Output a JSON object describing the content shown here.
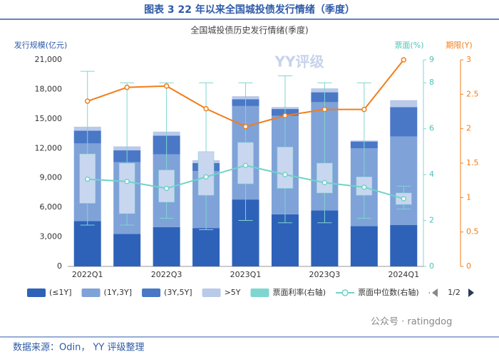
{
  "header": {
    "title": "图表 3  22 年以来全国城投债发行情绪（季度）"
  },
  "chart_data": {
    "type": "bar",
    "stacked": true,
    "subtitle": "全国城投债历史发行情绪(季度)",
    "watermark_logo": "YY评级",
    "y_label": "发行规模(亿元)",
    "y2_label": "票面(%)",
    "y3_label": "期限(Y)",
    "categories": [
      "2022Q1",
      null,
      "2022Q3",
      null,
      "2023Q1",
      null,
      "2023Q3",
      null,
      "2024Q1"
    ],
    "series": [
      {
        "name": "(≤1Y]",
        "color": "#2d62b8",
        "values": [
          4600,
          3300,
          4000,
          3900,
          6800,
          5300,
          5700,
          4100,
          4200
        ]
      },
      {
        "name": "(1Y,3Y]",
        "color": "#7fa2d8",
        "values": [
          7900,
          7300,
          7400,
          5800,
          9500,
          10000,
          11000,
          7900,
          9000
        ]
      },
      {
        "name": "(3Y,5Y]",
        "color": "#4a78c6",
        "values": [
          1300,
          1200,
          1900,
          800,
          700,
          700,
          1000,
          700,
          3000
        ]
      },
      {
        "name": ">5Y",
        "color": "#b9c9ea",
        "values": [
          400,
          400,
          400,
          300,
          300,
          200,
          400,
          100,
          700
        ]
      }
    ],
    "box": {
      "name": "票面利率(右轴)",
      "color": "#7fd6cf",
      "fill": "#c9d6f0",
      "axis": "y2",
      "min": [
        1.8,
        1.8,
        2.1,
        1.6,
        2.0,
        1.9,
        1.9,
        2.1,
        2.5
      ],
      "q1": [
        2.75,
        2.3,
        2.8,
        3.1,
        3.6,
        3.4,
        3.2,
        3.1,
        2.7
      ],
      "q3": [
        4.9,
        4.5,
        4.2,
        5.0,
        5.4,
        5.2,
        4.5,
        3.9,
        3.2
      ],
      "max": [
        8.5,
        8.0,
        8.0,
        8.0,
        8.0,
        8.3,
        8.0,
        8.0,
        3.5
      ]
    },
    "lines": [
      {
        "name": "票面中位数(右轴)",
        "color": "#6fd3c8",
        "axis": "y2",
        "values": [
          3.8,
          3.7,
          3.4,
          3.9,
          4.4,
          4.0,
          3.65,
          3.45,
          2.95
        ]
      },
      {
        "name": "期限(右轴)",
        "color": "#f07e1b",
        "axis": "y3",
        "values": [
          2.4,
          2.6,
          2.62,
          2.29,
          2.03,
          2.19,
          2.28,
          2.28,
          3.0
        ]
      }
    ],
    "ylim": [
      0,
      21000
    ],
    "yticks": [
      0,
      {
        "value": 3000,
        "label": "3,000"
      },
      {
        "value": 6000,
        "label": "6,000"
      },
      {
        "value": 9000,
        "label": "9,000"
      },
      {
        "value": 12000,
        "label": "12,000"
      },
      {
        "value": 15000,
        "label": "15,000"
      },
      {
        "value": 18000,
        "label": "18,000"
      },
      {
        "value": 21000,
        "label": "21,000"
      }
    ],
    "y2lim": [
      0,
      9
    ],
    "y2ticks": [
      0,
      2,
      4,
      6,
      8,
      9
    ],
    "y3lim": [
      0,
      3
    ],
    "y3ticks": [
      0,
      0.5,
      1,
      1.5,
      2,
      2.5,
      3
    ],
    "legend_page": "1/2"
  },
  "footer": {
    "source": "数据来源：Odin， YY 评级整理",
    "watermark": "公众号 · ratingdog"
  }
}
